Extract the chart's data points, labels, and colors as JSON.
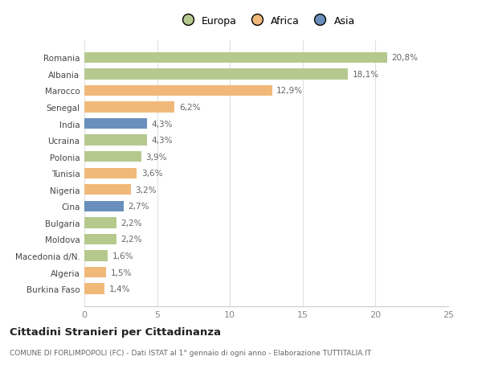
{
  "categories": [
    "Romania",
    "Albania",
    "Marocco",
    "Senegal",
    "India",
    "Ucraina",
    "Polonia",
    "Tunisia",
    "Nigeria",
    "Cina",
    "Bulgaria",
    "Moldova",
    "Macedonia d/N.",
    "Algeria",
    "Burkina Faso"
  ],
  "values": [
    20.8,
    18.1,
    12.9,
    6.2,
    4.3,
    4.3,
    3.9,
    3.6,
    3.2,
    2.7,
    2.2,
    2.2,
    1.6,
    1.5,
    1.4
  ],
  "labels": [
    "20,8%",
    "18,1%",
    "12,9%",
    "6,2%",
    "4,3%",
    "4,3%",
    "3,9%",
    "3,6%",
    "3,2%",
    "2,7%",
    "2,2%",
    "2,2%",
    "1,6%",
    "1,5%",
    "1,4%"
  ],
  "continents": [
    "Europa",
    "Europa",
    "Africa",
    "Africa",
    "Asia",
    "Europa",
    "Europa",
    "Africa",
    "Africa",
    "Asia",
    "Europa",
    "Europa",
    "Europa",
    "Africa",
    "Africa"
  ],
  "colors": {
    "Europa": "#b5c98e",
    "Africa": "#f0b97a",
    "Asia": "#6b8fbd"
  },
  "title": "Cittadini Stranieri per Cittadinanza",
  "subtitle": "COMUNE DI FORLIMPOPOLI (FC) - Dati ISTAT al 1° gennaio di ogni anno - Elaborazione TUTTITALIA.IT",
  "xlim": [
    0,
    25
  ],
  "xticks": [
    0,
    5,
    10,
    15,
    20,
    25
  ],
  "background_color": "#ffffff",
  "grid_color": "#e0e0e0",
  "bar_height": 0.65
}
